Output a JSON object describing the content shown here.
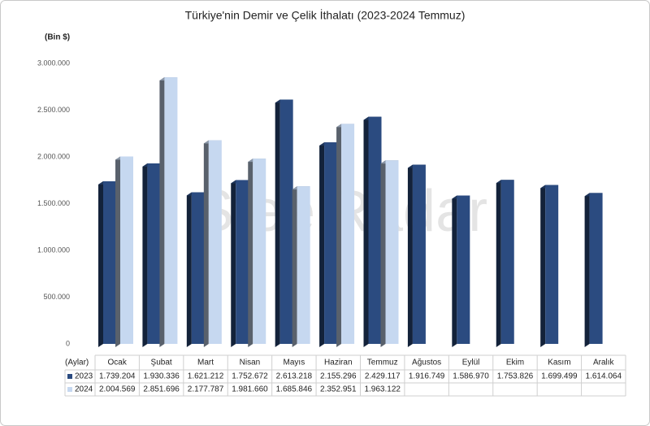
{
  "chart_data": {
    "type": "bar",
    "title": "Türkiye'nin Demir ve Çelik İthalatı (2023-2024 Temmuz)",
    "y_label": "(Bin $)",
    "x_label": "(Aylar)",
    "watermark": "SteelRadar",
    "categories": [
      "Ocak",
      "Şubat",
      "Mart",
      "Nisan",
      "Mayıs",
      "Haziran",
      "Temmuz",
      "Ağustos",
      "Eylül",
      "Ekim",
      "Kasım",
      "Aralık"
    ],
    "series": [
      {
        "name": "2023",
        "color": "#2b4b80",
        "values": [
          1739204,
          1930336,
          1621212,
          1752672,
          2613218,
          2155296,
          2429117,
          1916749,
          1586970,
          1753826,
          1699499,
          1614064
        ],
        "value_labels": [
          "1.739.204",
          "1.930.336",
          "1.621.212",
          "1.752.672",
          "2.613.218",
          "2.155.296",
          "2.429.117",
          "1.916.749",
          "1.586.970",
          "1.753.826",
          "1.699.499",
          "1.614.064"
        ]
      },
      {
        "name": "2024",
        "color": "#c6d8f0",
        "values": [
          2004569,
          2851696,
          2177787,
          1981660,
          1685846,
          2352951,
          1963122,
          null,
          null,
          null,
          null,
          null
        ],
        "value_labels": [
          "2.004.569",
          "2.851.696",
          "2.177.787",
          "1.981.660",
          "1.685.846",
          "2.352.951",
          "1.963.122",
          null,
          null,
          null,
          null,
          null
        ]
      }
    ],
    "ylim": [
      0,
      3000000
    ],
    "yticks": [
      0,
      {
        "value": 500000,
        "label": "500.000"
      },
      {
        "value": 1000000,
        "label": "1.000.000"
      },
      {
        "value": 1500000,
        "label": "1.500.000"
      },
      {
        "value": 2000000,
        "label": "2.000.000"
      },
      {
        "value": 2500000,
        "label": "2.500.000"
      },
      {
        "value": 3000000,
        "label": "3.000.000"
      }
    ],
    "grid": false
  }
}
